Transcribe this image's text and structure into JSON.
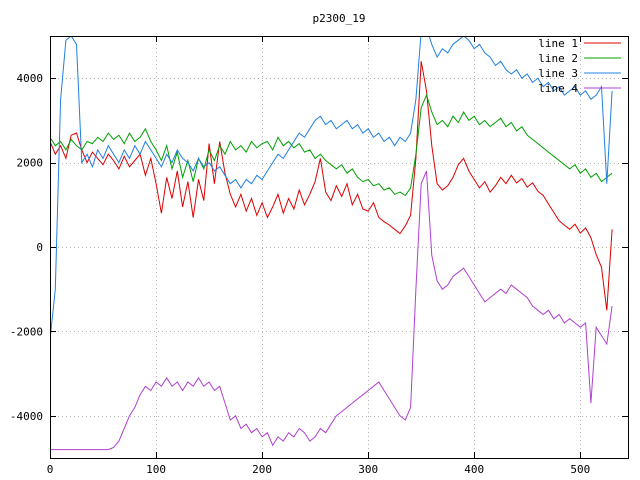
{
  "title": "p2300_19",
  "chart_data": {
    "type": "line",
    "title": "p2300_19",
    "xlabel": "",
    "ylabel": "",
    "xlim": [
      0,
      545
    ],
    "ylim": [
      -5000,
      5000
    ],
    "xticks": [
      0,
      100,
      200,
      300,
      400,
      500
    ],
    "yticks": [
      -4000,
      -2000,
      0,
      2000,
      4000
    ],
    "grid": true,
    "legend_position": "top-right",
    "background": "#ffffff",
    "grid_color": "#b4b4b4",
    "border_color": "#000000",
    "x": [
      0,
      5,
      10,
      15,
      20,
      25,
      30,
      35,
      40,
      45,
      50,
      55,
      60,
      65,
      70,
      75,
      80,
      85,
      90,
      95,
      100,
      105,
      110,
      115,
      120,
      125,
      130,
      135,
      140,
      145,
      150,
      155,
      160,
      165,
      170,
      175,
      180,
      185,
      190,
      195,
      200,
      205,
      210,
      215,
      220,
      225,
      230,
      235,
      240,
      245,
      250,
      255,
      260,
      265,
      270,
      275,
      280,
      285,
      290,
      295,
      300,
      305,
      310,
      315,
      320,
      325,
      330,
      335,
      340,
      345,
      350,
      355,
      360,
      365,
      370,
      375,
      380,
      385,
      390,
      395,
      400,
      405,
      410,
      415,
      420,
      425,
      430,
      435,
      440,
      445,
      450,
      455,
      460,
      465,
      470,
      475,
      480,
      485,
      490,
      495,
      500,
      505,
      510,
      515,
      520,
      525,
      530
    ],
    "series": [
      {
        "name": "line 1",
        "color": "#dd0000",
        "values": [
          2500,
          2200,
          2400,
          2100,
          2650,
          2700,
          2300,
          2000,
          2250,
          2100,
          1950,
          2200,
          2050,
          1850,
          2150,
          1900,
          2050,
          2200,
          1700,
          2100,
          1500,
          800,
          1650,
          1150,
          1800,
          950,
          1550,
          700,
          1600,
          1100,
          2450,
          1500,
          2500,
          1750,
          1250,
          950,
          1250,
          850,
          1150,
          750,
          1050,
          700,
          950,
          1250,
          800,
          1150,
          900,
          1350,
          1000,
          1250,
          1550,
          2100,
          1300,
          1100,
          1450,
          1200,
          1500,
          1000,
          1250,
          900,
          850,
          1050,
          700,
          600,
          520,
          420,
          320,
          500,
          750,
          2100,
          4400,
          3700,
          2400,
          1500,
          1350,
          1450,
          1650,
          1950,
          2100,
          1800,
          1600,
          1400,
          1550,
          1300,
          1450,
          1650,
          1500,
          1700,
          1520,
          1620,
          1420,
          1520,
          1320,
          1220,
          1020,
          820,
          620,
          520,
          420,
          540,
          330,
          450,
          220,
          -180,
          -480,
          -1500,
          420
        ]
      },
      {
        "name": "line 2",
        "color": "#00a000",
        "values": [
          2600,
          2400,
          2500,
          2300,
          2550,
          2400,
          2300,
          2500,
          2450,
          2600,
          2500,
          2700,
          2550,
          2650,
          2450,
          2700,
          2500,
          2600,
          2800,
          2500,
          2300,
          2050,
          2400,
          1850,
          2250,
          1650,
          2050,
          1550,
          2100,
          1850,
          2300,
          2050,
          2400,
          2200,
          2500,
          2300,
          2400,
          2250,
          2500,
          2350,
          2450,
          2500,
          2300,
          2600,
          2400,
          2500,
          2350,
          2450,
          2250,
          2300,
          2100,
          2200,
          2050,
          1950,
          1850,
          1950,
          1750,
          1850,
          1650,
          1550,
          1600,
          1450,
          1500,
          1350,
          1400,
          1250,
          1300,
          1220,
          1400,
          2200,
          3300,
          3600,
          3200,
          2900,
          3000,
          2850,
          3100,
          2950,
          3200,
          3000,
          3100,
          2900,
          3000,
          2850,
          2950,
          3050,
          2850,
          2950,
          2750,
          2850,
          2650,
          2550,
          2450,
          2350,
          2250,
          2150,
          2050,
          1950,
          1850,
          1950,
          1750,
          1850,
          1650,
          1750,
          1550,
          1650,
          1750
        ]
      },
      {
        "name": "line 3",
        "color": "#2080e0",
        "values": [
          -2200,
          -1000,
          3500,
          4900,
          5000,
          4800,
          2000,
          2200,
          1900,
          2300,
          2100,
          2400,
          2200,
          2000,
          2300,
          2100,
          2400,
          2200,
          2500,
          2300,
          2100,
          1900,
          2200,
          2000,
          2300,
          2100,
          2000,
          1800,
          2100,
          1900,
          2000,
          1800,
          1900,
          1700,
          1500,
          1600,
          1400,
          1600,
          1500,
          1700,
          1600,
          1800,
          2000,
          2200,
          2100,
          2300,
          2500,
          2700,
          2600,
          2800,
          3000,
          3100,
          2900,
          3000,
          2800,
          2900,
          3000,
          2800,
          2900,
          2700,
          2800,
          2600,
          2700,
          2500,
          2600,
          2400,
          2600,
          2500,
          2700,
          3500,
          5100,
          5200,
          4800,
          4500,
          4700,
          4600,
          4800,
          4900,
          5000,
          4900,
          4700,
          4800,
          4600,
          4500,
          4300,
          4400,
          4200,
          4100,
          4200,
          4000,
          4100,
          3900,
          4000,
          3800,
          3900,
          3700,
          3800,
          3600,
          3700,
          3800,
          3600,
          3700,
          3500,
          3600,
          3800,
          1500,
          3700
        ]
      },
      {
        "name": "line 4",
        "color": "#b040d0",
        "values": [
          -4800,
          -4800,
          -4800,
          -4800,
          -4800,
          -4800,
          -4800,
          -4800,
          -4800,
          -4800,
          -4800,
          -4800,
          -4750,
          -4600,
          -4300,
          -4000,
          -3800,
          -3500,
          -3300,
          -3400,
          -3200,
          -3300,
          -3100,
          -3300,
          -3200,
          -3400,
          -3200,
          -3300,
          -3100,
          -3300,
          -3200,
          -3400,
          -3300,
          -3700,
          -4100,
          -4000,
          -4300,
          -4200,
          -4400,
          -4300,
          -4500,
          -4400,
          -4700,
          -4500,
          -4600,
          -4400,
          -4500,
          -4300,
          -4400,
          -4600,
          -4500,
          -4300,
          -4400,
          -4200,
          -4000,
          -3900,
          -3800,
          -3700,
          -3600,
          -3500,
          -3400,
          -3300,
          -3200,
          -3400,
          -3600,
          -3800,
          -4000,
          -4100,
          -3800,
          -1000,
          1500,
          1800,
          -200,
          -800,
          -1000,
          -900,
          -700,
          -600,
          -500,
          -700,
          -900,
          -1100,
          -1300,
          -1200,
          -1100,
          -1000,
          -1100,
          -900,
          -1000,
          -1100,
          -1200,
          -1400,
          -1500,
          -1600,
          -1500,
          -1700,
          -1600,
          -1800,
          -1700,
          -1800,
          -1900,
          -1800,
          -3700,
          -1900,
          -2100,
          -2300,
          -1400
        ]
      }
    ]
  }
}
